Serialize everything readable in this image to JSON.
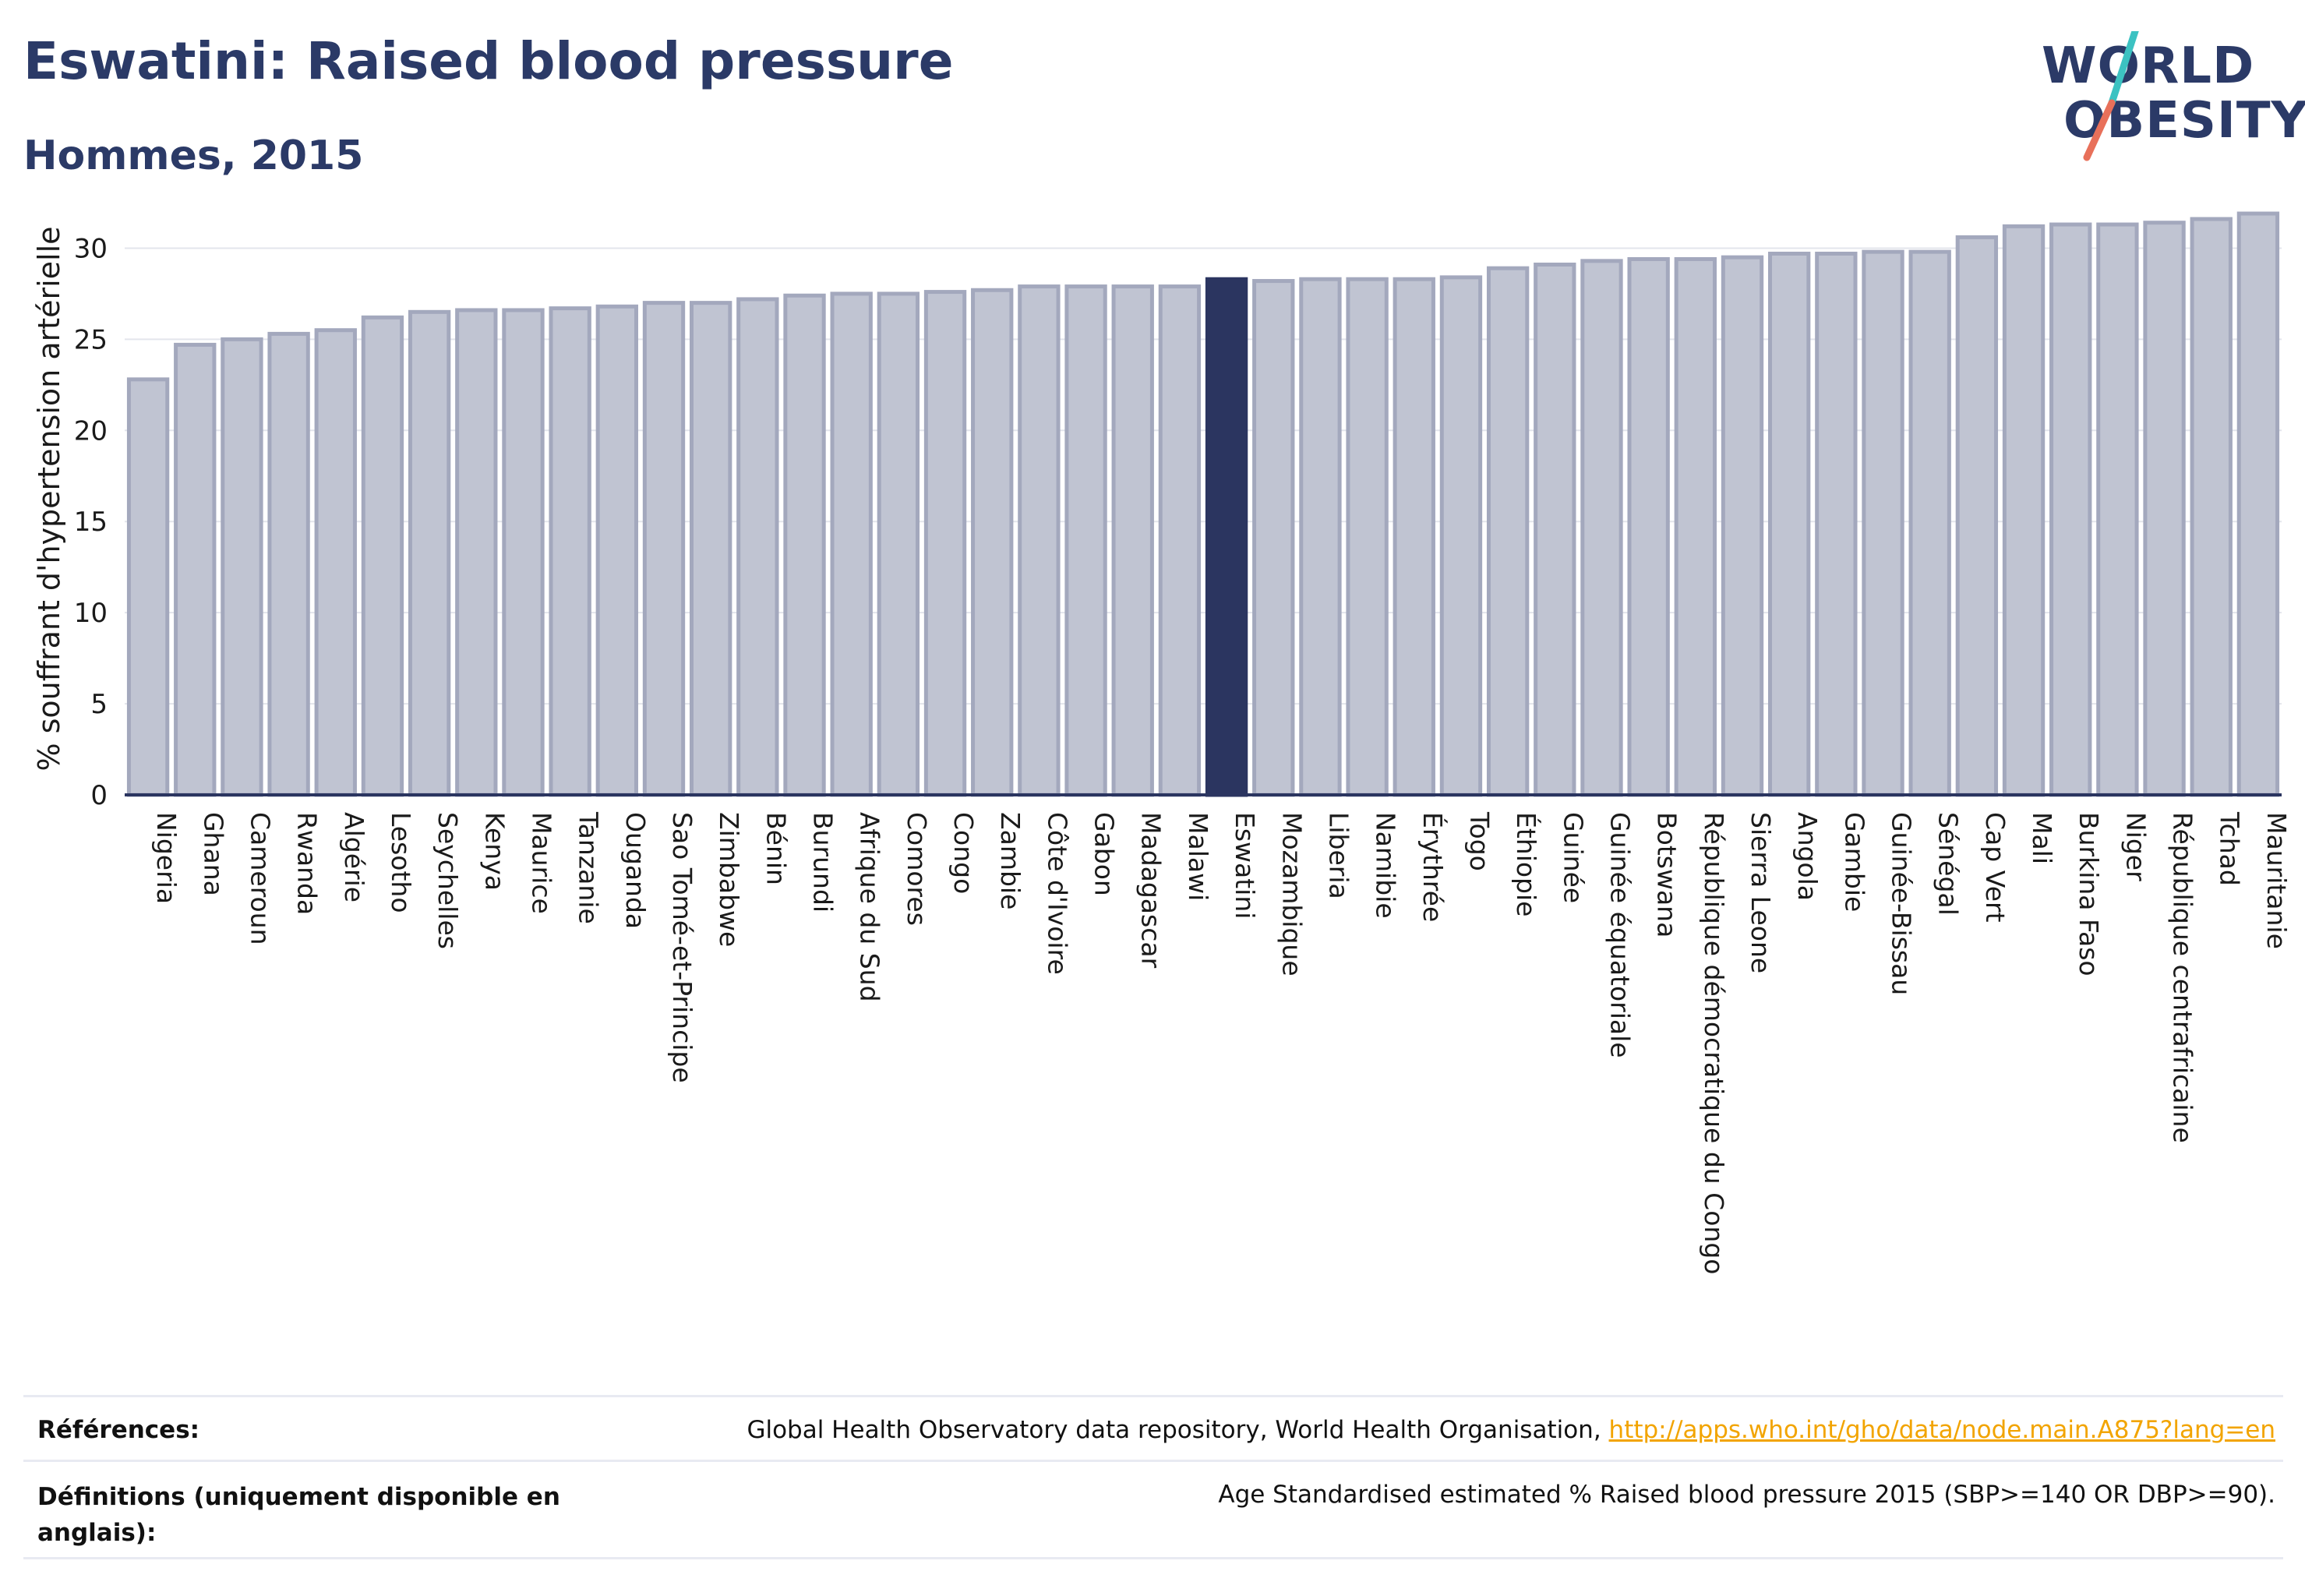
{
  "header": {
    "title": "Eswatini: Raised blood pressure",
    "subtitle": "Hommes, 2015"
  },
  "logo": {
    "line1": "WORLD",
    "line2": "OBESITY",
    "accent_teal": "#3cc2c2",
    "accent_coral": "#e8705a"
  },
  "colors": {
    "bar": "#c0c4d2",
    "bar_stroke": "#a3a8bd",
    "highlight": "#2b3560",
    "grid": "#e3e5ec",
    "axis": "#2b3560"
  },
  "chart_data": {
    "type": "bar",
    "title": "Eswatini: Raised blood pressure",
    "subtitle": "Hommes, 2015",
    "ylabel": "% souffrant d'hypertension artérielle",
    "ylim": [
      0,
      32.5
    ],
    "yticks": [
      0,
      5,
      10,
      15,
      20,
      25,
      30
    ],
    "grid": true,
    "highlight": "Eswatini",
    "categories": [
      "Nigeria",
      "Ghana",
      "Cameroun",
      "Rwanda",
      "Algérie",
      "Lesotho",
      "Seychelles",
      "Kenya",
      "Maurice",
      "Tanzanie",
      "Ouganda",
      "Sao Tomé-et-Principe",
      "Zimbabwe",
      "Bénin",
      "Burundi",
      "Afrique du Sud",
      "Comores",
      "Congo",
      "Zambie",
      "Côte d'Ivoire",
      "Gabon",
      "Madagascar",
      "Malawi",
      "Eswatini",
      "Mozambique",
      "Liberia",
      "Namibie",
      "Érythrée",
      "Togo",
      "Éthiopie",
      "Guinée",
      "Guinée équatoriale",
      "Botswana",
      "République démocratique du Congo",
      "Sierra Leone",
      "Angola",
      "Gambie",
      "Guinée-Bissau",
      "Sénégal",
      "Cap Vert",
      "Mali",
      "Burkina Faso",
      "Niger",
      "République centrafricaine",
      "Tchad",
      "Mauritanie"
    ],
    "values": [
      22.8,
      24.7,
      25.0,
      25.3,
      25.5,
      26.2,
      26.5,
      26.6,
      26.6,
      26.7,
      26.8,
      27.0,
      27.0,
      27.2,
      27.4,
      27.5,
      27.5,
      27.6,
      27.7,
      27.9,
      27.9,
      27.9,
      27.9,
      28.3,
      28.2,
      28.3,
      28.3,
      28.3,
      28.4,
      28.9,
      29.1,
      29.3,
      29.4,
      29.4,
      29.5,
      29.7,
      29.7,
      29.8,
      29.8,
      30.6,
      31.2,
      31.3,
      31.3,
      31.4,
      31.6,
      31.9
    ]
  },
  "references": {
    "refs_label": "Références:",
    "refs_text": "Global Health Observatory data repository, World Health Organisation, ",
    "refs_link": "http://apps.who.int/gho/data/node.main.A875?lang=en",
    "defs_label_line1": "Définitions (uniquement disponible en",
    "defs_label_line2": "anglais):",
    "defs_text": "Age Standardised estimated % Raised blood pressure 2015 (SBP>=140 OR DBP>=90)."
  }
}
